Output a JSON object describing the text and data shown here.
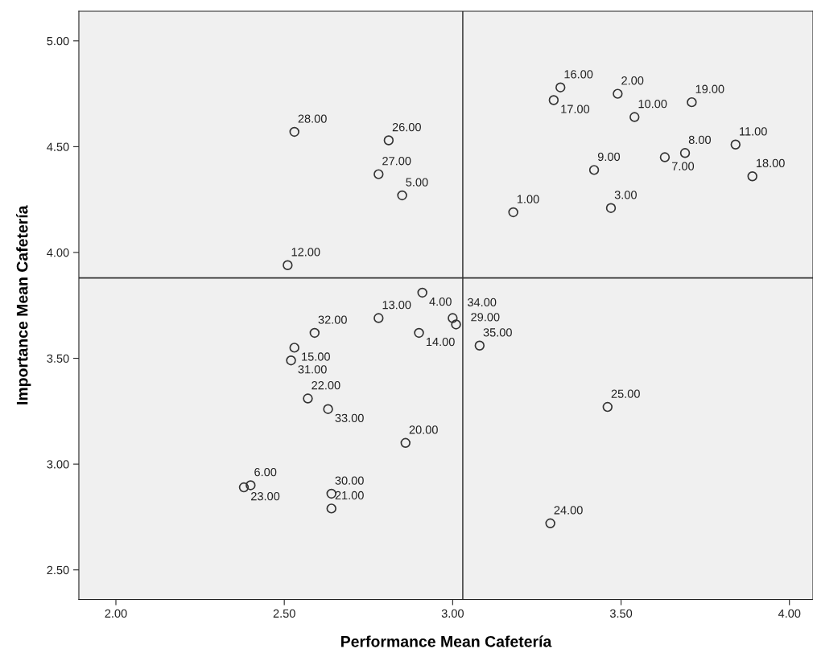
{
  "chart_data": {
    "type": "scatter",
    "xlabel": "Performance Mean Cafetería",
    "ylabel": "Importance Mean Cafetería",
    "x": [
      3.18,
      3.49,
      3.47,
      2.91,
      2.85,
      2.4,
      3.63,
      3.69,
      3.42,
      3.54,
      3.84,
      2.51,
      2.78,
      2.9,
      2.53,
      3.32,
      3.3,
      3.89,
      3.71,
      2.86,
      2.64,
      2.57,
      2.38,
      3.29,
      3.46,
      2.81,
      2.78,
      2.53,
      3.0,
      2.64,
      2.52,
      2.59,
      2.63,
      3.01,
      3.08
    ],
    "values": [
      4.19,
      4.75,
      4.21,
      3.81,
      4.27,
      2.9,
      4.45,
      4.47,
      4.39,
      4.64,
      4.51,
      3.94,
      3.69,
      3.62,
      3.55,
      4.78,
      4.72,
      4.36,
      4.71,
      3.1,
      2.79,
      3.31,
      2.89,
      2.72,
      3.27,
      4.53,
      4.37,
      4.57,
      3.69,
      2.86,
      3.49,
      3.62,
      3.26,
      3.66,
      3.56
    ],
    "annotations": [
      {
        "text": "1.00",
        "x": 3.18,
        "y": 4.19
      },
      {
        "text": "2.00",
        "x": 3.49,
        "y": 4.75
      },
      {
        "text": "3.00",
        "x": 3.47,
        "y": 4.21
      },
      {
        "text": "4.00",
        "x": 2.91,
        "y": 3.81
      },
      {
        "text": "5.00",
        "x": 2.85,
        "y": 4.27
      },
      {
        "text": "6.00",
        "x": 2.4,
        "y": 2.9
      },
      {
        "text": "7.00",
        "x": 3.63,
        "y": 4.45
      },
      {
        "text": "8.00",
        "x": 3.69,
        "y": 4.47
      },
      {
        "text": "9.00",
        "x": 3.42,
        "y": 4.39
      },
      {
        "text": "10.00",
        "x": 3.54,
        "y": 4.64
      },
      {
        "text": "11.00",
        "x": 3.84,
        "y": 4.51
      },
      {
        "text": "12.00",
        "x": 2.51,
        "y": 3.94
      },
      {
        "text": "13.00",
        "x": 2.78,
        "y": 3.69
      },
      {
        "text": "14.00",
        "x": 2.9,
        "y": 3.62
      },
      {
        "text": "15.00",
        "x": 2.53,
        "y": 3.55
      },
      {
        "text": "16.00",
        "x": 3.32,
        "y": 4.78
      },
      {
        "text": "17.00",
        "x": 3.3,
        "y": 4.72
      },
      {
        "text": "18.00",
        "x": 3.89,
        "y": 4.36
      },
      {
        "text": "19.00",
        "x": 3.71,
        "y": 4.71
      },
      {
        "text": "20.00",
        "x": 2.86,
        "y": 3.1
      },
      {
        "text": "21.00",
        "x": 2.64,
        "y": 2.79
      },
      {
        "text": "22.00",
        "x": 2.57,
        "y": 3.31
      },
      {
        "text": "23.00",
        "x": 2.38,
        "y": 2.89
      },
      {
        "text": "24.00",
        "x": 3.29,
        "y": 2.72
      },
      {
        "text": "25.00",
        "x": 3.46,
        "y": 3.27
      },
      {
        "text": "26.00",
        "x": 2.81,
        "y": 4.53
      },
      {
        "text": "27.00",
        "x": 2.78,
        "y": 4.37
      },
      {
        "text": "28.00",
        "x": 2.53,
        "y": 4.57
      },
      {
        "text": "29.00",
        "x": 3.0,
        "y": 3.69
      },
      {
        "text": "30.00",
        "x": 2.64,
        "y": 2.86
      },
      {
        "text": "31.00",
        "x": 2.52,
        "y": 3.49
      },
      {
        "text": "32.00",
        "x": 2.59,
        "y": 3.62
      },
      {
        "text": "33.00",
        "x": 2.63,
        "y": 3.26
      },
      {
        "text": "34.00",
        "x": 3.01,
        "y": 3.66
      },
      {
        "text": "35.00",
        "x": 3.08,
        "y": 3.56
      }
    ],
    "color": "#333333",
    "marker": "circle",
    "xlim": [
      1.89,
      4.07
    ],
    "ylim": [
      2.36,
      5.14
    ],
    "xticks": [
      {
        "value": 2,
        "label": "2.00"
      },
      {
        "value": 2.5,
        "label": "2.50"
      },
      {
        "value": 3,
        "label": "3.00"
      },
      {
        "value": 3.5,
        "label": "3.50"
      },
      {
        "value": 4,
        "label": "4.00"
      }
    ],
    "yticks": [
      {
        "value": 2.5,
        "label": "2.50"
      },
      {
        "value": 3,
        "label": "3.00"
      },
      {
        "value": 3.5,
        "label": "3.50"
      },
      {
        "value": 4,
        "label": "4.00"
      },
      {
        "value": 4.5,
        "label": "4.50"
      },
      {
        "value": 5,
        "label": "5.00"
      }
    ],
    "ref_lines": [
      {
        "axis": "x",
        "value": 3.03,
        "color": "#555555"
      },
      {
        "axis": "y",
        "value": 3.88,
        "color": "#333333"
      }
    ],
    "grid": false,
    "legend": false
  }
}
